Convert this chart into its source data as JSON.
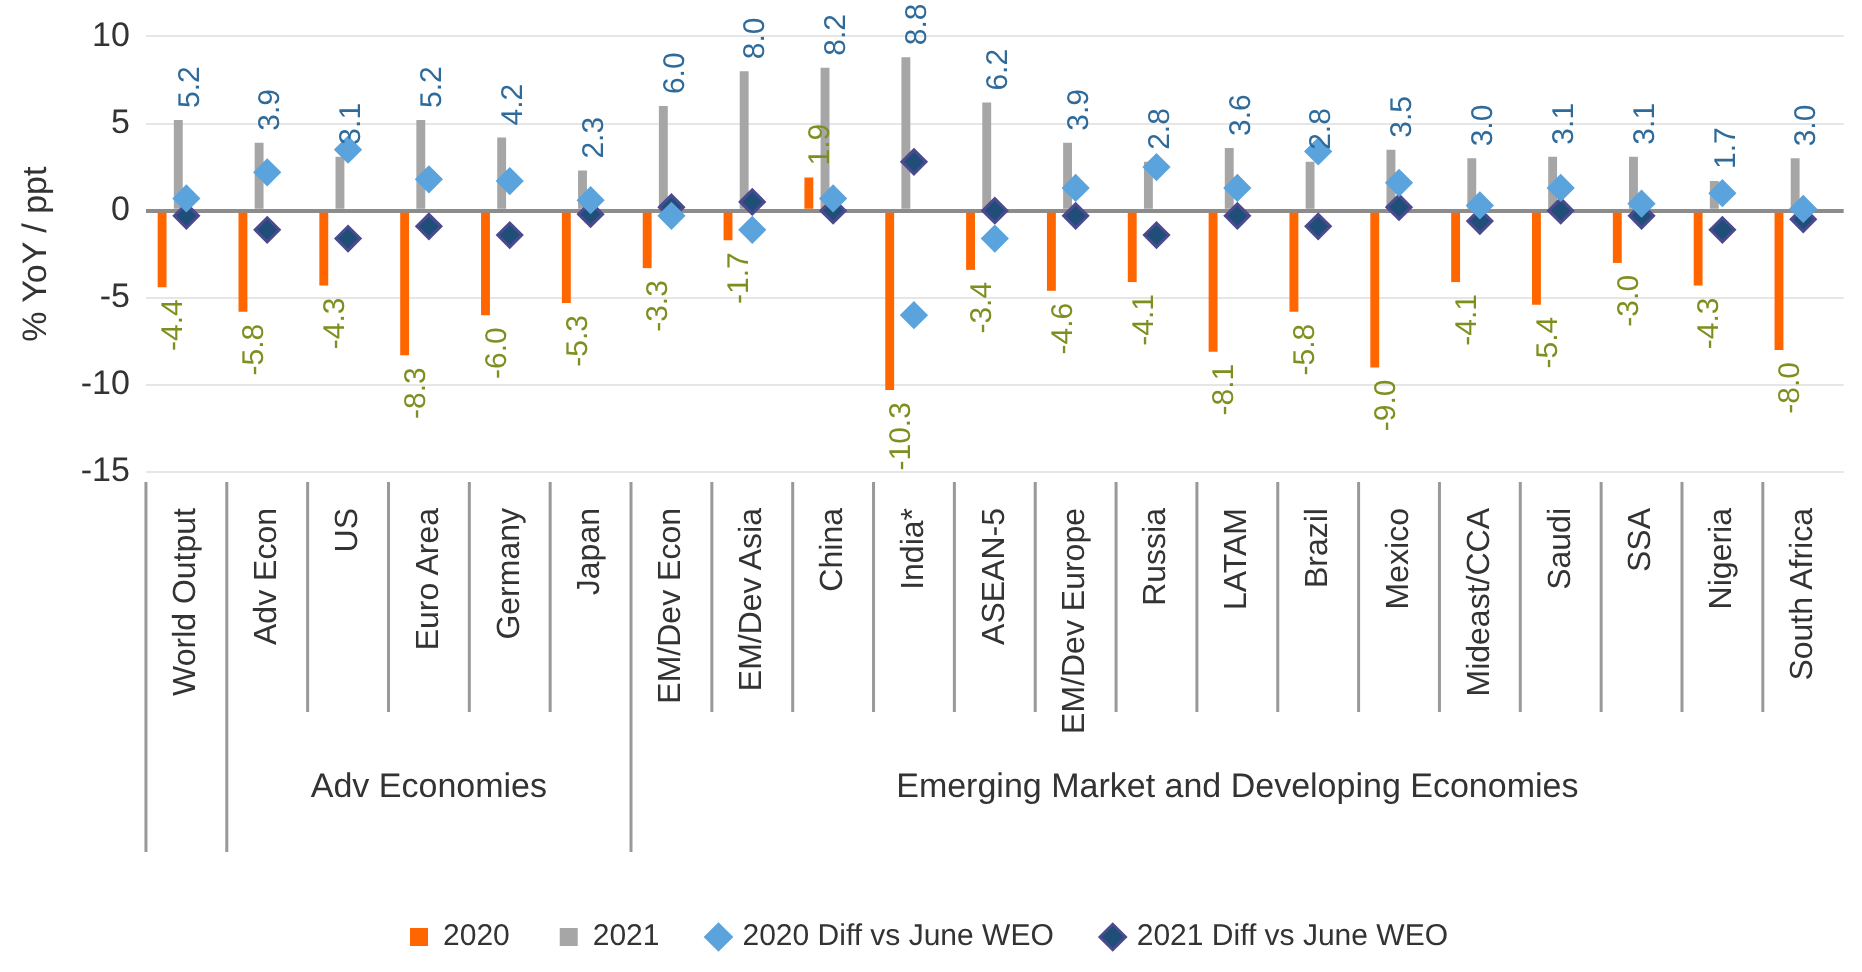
{
  "chart_data": {
    "type": "bar",
    "ylabel": "% YoY / ppt",
    "categories": [
      "World Output",
      "Adv Econ",
      "US",
      "Euro Area",
      "Germany",
      "Japan",
      "EM/Dev Econ",
      "EM/Dev Asia",
      "China",
      "India*",
      "ASEAN-5",
      "EM/Dev Europe",
      "Russia",
      "LATAM",
      "Brazil",
      "Mexico",
      "Mideast/CCA",
      "Saudi",
      "SSA",
      "Nigeria",
      "South Africa"
    ],
    "series": [
      {
        "name": "2020",
        "color": "#ff6600",
        "values": [
          -4.4,
          -5.8,
          -4.3,
          -8.3,
          -6.0,
          -5.3,
          -3.3,
          -1.7,
          1.9,
          -10.3,
          -3.4,
          -4.6,
          -4.1,
          -8.1,
          -5.8,
          -9.0,
          -4.1,
          -5.4,
          -3.0,
          -4.3,
          -8.0
        ],
        "value_labels": [
          "-4.4",
          "-5.8",
          "-4.3",
          "-8.3",
          "-6.0",
          "-5.3",
          "-3.3",
          "-1.7",
          "1.9",
          "-10.3",
          "-3.4",
          "-4.6",
          "-4.1",
          "-8.1",
          "-5.8",
          "-9.0",
          "-4.1",
          "-5.4",
          "-3.0",
          "-4.3",
          "-8.0"
        ]
      },
      {
        "name": "2021",
        "color": "#a6a6a6",
        "values": [
          5.2,
          3.9,
          3.1,
          5.2,
          4.2,
          2.3,
          6.0,
          8.0,
          8.2,
          8.8,
          6.2,
          3.9,
          2.8,
          3.6,
          2.8,
          3.5,
          3.0,
          3.1,
          3.1,
          1.7,
          3.0
        ],
        "value_labels": [
          "5.2",
          "3.9",
          "3.1",
          "5.2",
          "4.2",
          "2.3",
          "6.0",
          "8.0",
          "8.2",
          "8.8",
          "6.2",
          "3.9",
          "2.8",
          "3.6",
          "2.8",
          "3.5",
          "3.0",
          "3.1",
          "3.1",
          "1.7",
          "3.0"
        ]
      },
      {
        "name": "2020 Diff vs June WEO",
        "type": "scatter",
        "color": "#5ba3dc",
        "values": [
          0.7,
          2.2,
          3.5,
          1.8,
          1.7,
          0.6,
          -0.3,
          -1.1,
          0.7,
          -6.0,
          -1.6,
          1.3,
          2.5,
          1.3,
          3.4,
          1.6,
          0.3,
          1.3,
          0.4,
          1.0,
          0.1
        ]
      },
      {
        "name": "2021 Diff vs June WEO",
        "type": "scatter",
        "color": "#1f4e79",
        "values": [
          -0.3,
          -1.1,
          -1.6,
          -0.9,
          -1.4,
          -0.2,
          0.2,
          0.5,
          0.0,
          2.8,
          0.0,
          -0.3,
          -1.4,
          -0.3,
          -0.9,
          0.2,
          -0.6,
          0.0,
          -0.3,
          -1.1,
          -0.5
        ]
      }
    ],
    "ylim": [
      -15,
      10
    ],
    "yticks": [
      -15,
      -10,
      -5,
      0,
      5,
      10
    ],
    "grid": "y",
    "legend": "bottom",
    "marker": "diamond",
    "annotations": [
      "Adv Economies",
      "Emerging Market and Developing Economies"
    ]
  }
}
